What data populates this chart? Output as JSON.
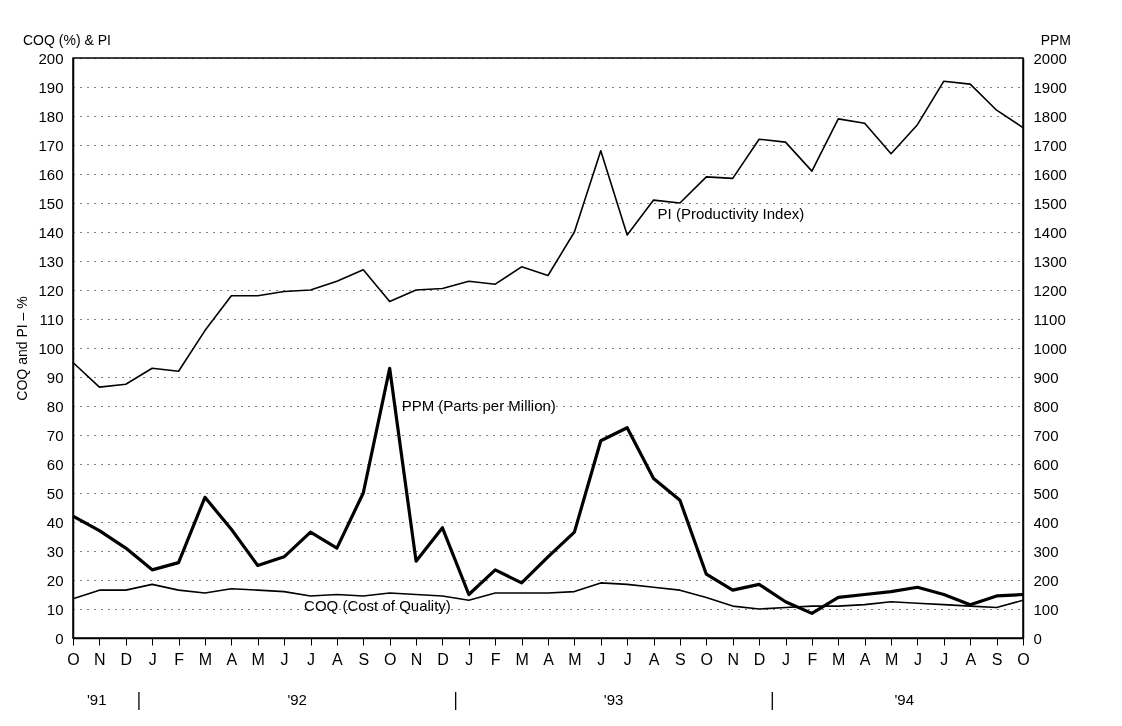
{
  "chart_data": {
    "type": "line",
    "ylabel": "COQ and PI – %",
    "y2label": "PPM",
    "categories": [
      "O",
      "N",
      "D",
      "J",
      "F",
      "M",
      "A",
      "M",
      "J",
      "J",
      "A",
      "S",
      "O",
      "N",
      "D",
      "J",
      "F",
      "M",
      "A",
      "M",
      "J",
      "J",
      "A",
      "S",
      "O",
      "N",
      "D",
      "J",
      "F",
      "M",
      "A",
      "M",
      "J",
      "J",
      "A",
      "S",
      "O"
    ],
    "ylim": [
      0,
      200
    ],
    "yticks": [
      0,
      10,
      20,
      30,
      40,
      50,
      60,
      70,
      80,
      90,
      100,
      110,
      120,
      130,
      140,
      150,
      160,
      170,
      180,
      190,
      200
    ],
    "y2lim": [
      0,
      2000
    ],
    "y2ticks": [
      0,
      100,
      200,
      300,
      400,
      500,
      600,
      700,
      800,
      900,
      1000,
      1100,
      1200,
      1300,
      1400,
      1500,
      1600,
      1700,
      1800,
      1900,
      2000
    ],
    "grid": "y",
    "marker": "none",
    "line_style": "solid",
    "series": [
      {
        "name": "PI (Productivity Index)",
        "color": "#000000",
        "values": [
          95,
          86.5,
          87.5,
          93,
          92,
          106,
          118,
          118,
          119.5,
          120,
          123,
          127,
          116,
          120,
          120.5,
          123,
          122,
          128,
          125,
          140,
          168,
          139,
          151,
          150,
          159,
          158.5,
          172,
          171,
          161,
          179,
          177.5,
          167,
          177,
          192,
          191,
          182,
          176
        ]
      },
      {
        "name": "PPM (Parts per Million)",
        "color": "#000000",
        "axis": "y2",
        "values": [
          420,
          370,
          310,
          235,
          260,
          485,
          375,
          250,
          280,
          365,
          310,
          500,
          930,
          265,
          380,
          150,
          235,
          190,
          280,
          365,
          680,
          725,
          550,
          475,
          220,
          165,
          185,
          125,
          85,
          140,
          150,
          160,
          175,
          150,
          115,
          145,
          150
        ]
      },
      {
        "name": "COQ (Cost of Quality)",
        "color": "#000000",
        "values": [
          13.5,
          16.5,
          16.5,
          18.5,
          16.5,
          15.5,
          17,
          16.5,
          16,
          14.5,
          15,
          14.5,
          15.5,
          15,
          14.5,
          13,
          15.5,
          15.5,
          15.5,
          16,
          19,
          18.5,
          17.5,
          16.5,
          14,
          11,
          10,
          10.5,
          11,
          11,
          11.5,
          12.5,
          12,
          11.5,
          11,
          10.5,
          13
        ]
      }
    ],
    "annotations": [
      "COQ (%) & PI",
      "'91",
      "'92",
      "'93",
      "'94"
    ]
  }
}
